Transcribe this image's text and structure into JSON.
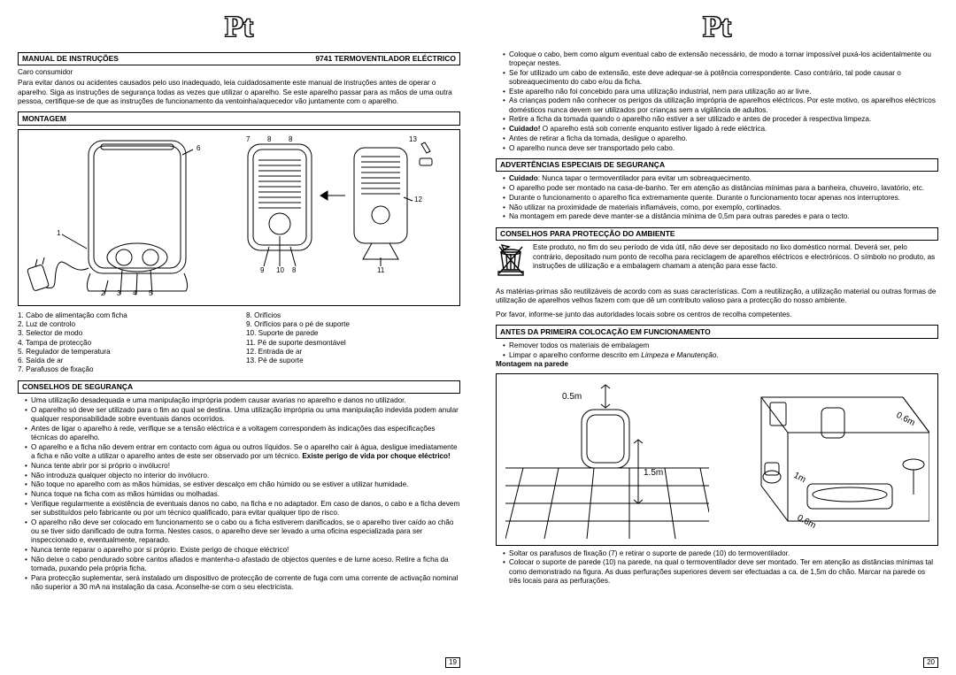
{
  "lang": "Pt",
  "left": {
    "header_left": "MANUAL DE INSTRUÇÕES",
    "header_right": "9741  TERMOVENTILADOR ELÉCTRICO",
    "intro_greeting": "Caro consumidor",
    "intro_body": "Para evitar danos ou acidentes causados pelo uso inadequado, leia cuidadosamente este manual de instruções antes de operar o aparelho. Siga as instruções de segurança todas as vezes que utilizar o aparelho. Se este aparelho passar para as mãos de uma outra pessoa, certifique-se de que as instruções de funcionamento da ventoinha/aquecedor vão juntamente com o aparelho.",
    "montagem_header": "MONTAGEM",
    "parts_left": [
      "1. Cabo de alimentação com ficha",
      "2. Luz de controlo",
      "3. Selector de modo",
      "4. Tampa de protecção",
      "5. Regulador de temperatura",
      "6. Saída de ar",
      "7. Parafusos de fixação"
    ],
    "parts_right": [
      "8. Orifícios",
      "9. Orifícios para o pé de suporte",
      "10. Suporte de parede",
      "11. Pé de suporte desmontável",
      "12. Entrada de ar",
      "13. Pé de suporte"
    ],
    "safety_header": "CONSELHOS DE SEGURANÇA",
    "safety_items": [
      "Uma utilização desadequada e uma manipulação imprópria podem causar avarias no aparelho e danos no utilizador.",
      "O aparelho só deve ser utilizado para o fim ao qual se destina. Uma utilização imprópria ou uma manipulação indevida podem anular qualquer responsabilidade sobre eventuais danos ocorridos.",
      "Antes de ligar o aparelho à rede, verifique se a tensão eléctrica e a voltagem correspondem às indicações das especificações técnicas do aparelho.",
      "O aparelho e a ficha não devem entrar em contacto com água ou outros líquidos. Se o aparelho cair à água, desligue imediatamente a ficha e não volte a utilizar o aparelho antes de este ser observado por um técnico. <b>Existe perigo de vida por choque eléctrico!</b>",
      "Nunca tente abrir por si próprio o invólucro!",
      "Não introduza qualquer objecto no interior do invólucro.",
      "Não toque no aparelho com as mãos húmidas, se estiver descalço em chão húmido ou se estiver a utilizar humidade.",
      "Nunca toque na ficha com as mãos húmidas ou molhadas.",
      "Verifique regularmente a existência de eventuais danos no cabo, na ficha e no adaptador. Em caso de danos, o cabo e a ficha devem ser substituídos pelo fabricante ou por um técnico qualificado, para evitar qualquer tipo de risco.",
      "O aparelho não deve ser colocado em funcionamento se o cabo ou a ficha estiverem danificados, se o aparelho tiver caído ao chão ou se tiver sido danificado de outra forma. Nestes casos, o aparelho deve ser levado a uma oficina especializada para ser inspeccionado e, eventualmente, reparado.",
      "Nunca tente reparar o aparelho por si próprio. Existe perigo de choque eléctrico!",
      "Não deixe o cabo pendurado sobre cantos afiados e mantenha-o afastado de objectos quentes e de lume aceso. Retire a ficha da tomada, puxando pela própria ficha.",
      "Para protecção suplementar, será instalado um dispositivo de protecção de corrente de fuga com uma corrente de activação nominal não superior a 30 mA na instalação da casa. Aconselhe-se com o seu electricista."
    ],
    "pagenum": "19"
  },
  "right": {
    "top_items": [
      "Coloque o cabo, bem como algum eventual cabo de extensão necessário, de modo a tornar impossível puxá-los acidentalmente ou tropeçar nestes.",
      "Se for utilizado um cabo de extensão, este deve adequar-se à potência correspondente. Caso contrário, tal pode causar o sobreaquecimento do cabo e/ou da ficha.",
      "Este aparelho não foi concebido para uma utilização industrial, nem para utilização ao ar livre.",
      "As crianças podem não conhecer os perigos da utilização imprópria de aparelhos eléctricos. Por este motivo, os aparelhos eléctricos domésticos nunca devem ser utilizados por crianças sem a vigilância de adultos.",
      "Retire a ficha da tomada quando o aparelho não estiver a ser utilizado e antes de proceder à respectiva limpeza.",
      "<b>Cuidado!</b> O aparelho está sob corrente enquanto estiver ligado à rede eléctrica.",
      "Antes de retirar a ficha da tomada, desligue o aparelho.",
      "O aparelho nunca deve ser transportado pelo cabo."
    ],
    "warn_header": "ADVERTÊNCIAS ESPECIAIS DE SEGURANÇA",
    "warn_items": [
      "<b>Cuidado</b>: Nunca tapar o termoventilador para evitar um sobreaquecimento.",
      "O aparelho pode ser montado na casa-de-banho. Ter em atenção as distâncias mínimas para a banheira, chuveiro, lavatório, etc.",
      "Durante o funcionamento o aparelho fica extremamente quente. Durante o funcionamento tocar apenas nos interruptores.",
      "Não utilizar na proximidade de materiais inflamáveis, como, por exemplo, cortinados.",
      "Na montagem em parede deve manter-se a distância mínima de 0,5m para outras paredes e para o tecto."
    ],
    "env_header": "CONSELHOS PARA PROTECÇÃO DO AMBIENTE",
    "env_weee": "Este produto, no fim do seu período de vida útil, não deve ser depositado no lixo doméstico normal. Deverá ser, pelo contrário, depositado num ponto de recolha para reciclagem de aparelhos eléctricos e electrónicos. O símbolo no produto, as instruções de utilização e a embalagem chamam a atenção para esse facto.",
    "env_p2": "As matérias-primas são reutilizáveis de acordo com as suas características. Com a reutilização, a utilização material ou outras formas de utilização de aparelhos velhos fazem com que dê um contributo valioso para a protecção do nosso ambiente.",
    "env_p3": "Por favor, informe-se junto das autoridades locais sobre os centros de recolha competentes.",
    "before_header": "ANTES DA PRIMEIRA COLOCAÇÃO EM FUNCIONAMENTO",
    "before_items": [
      "Remover todos os materiais de embalagem",
      "Limpar o aparelho conforme descrito em <i>Limpeza e Manutenção</i>."
    ],
    "mount_label": "Montagem na parede",
    "dims": {
      "top": "0.5m",
      "floor": "1.5m",
      "wall_h": "0.6m",
      "wall_d": "1m",
      "wall_w": "0.6m"
    },
    "bottom_items": [
      "Soltar os parafusos de fixação (7) e retirar o suporte de parede (10) do termoventilador.",
      "Colocar o suporte de parede (10) na parede, na qual o termoventilador deve ser montado. Ter em atenção as distâncias mínimas tal como demonstrado na figura. As duas perfurações superiores devem ser efectuadas a ca. de 1,5m do chão. Marcar na parede os três locais para as perfurações."
    ],
    "pagenum": "20"
  },
  "diagram_callouts": [
    "1",
    "2",
    "3",
    "4",
    "5",
    "6",
    "7",
    "8",
    "8",
    "9",
    "10",
    "8",
    "11",
    "12",
    "13"
  ]
}
